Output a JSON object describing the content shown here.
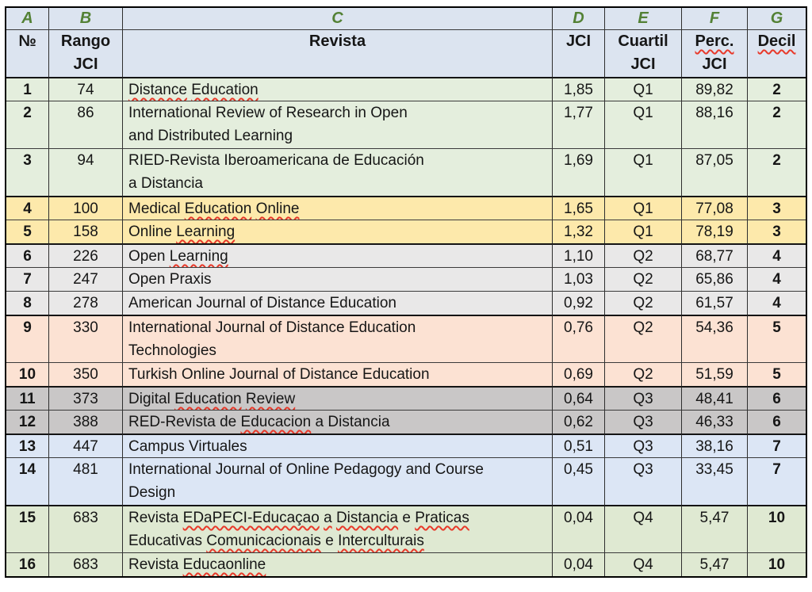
{
  "table": {
    "column_letters": [
      "A",
      "B",
      "C",
      "D",
      "E",
      "F",
      "G"
    ],
    "headers": [
      {
        "label": "№",
        "sq": []
      },
      {
        "label": "Rango\nJCI",
        "sq": []
      },
      {
        "label": "Revista",
        "sq": []
      },
      {
        "label": "JCI",
        "sq": []
      },
      {
        "label": "Cuartil\nJCI",
        "sq": []
      },
      {
        "label": "Perc.\nJCI",
        "sq": [
          "Perc."
        ]
      },
      {
        "label": "Decil",
        "sq": [
          "Decil"
        ]
      }
    ],
    "rows": [
      {
        "n": "1",
        "rango": "74",
        "revista": "Distance Education",
        "sq": [
          "Distance",
          "Education"
        ],
        "jci": "1,85",
        "cuartil": "Q1",
        "perc": "89,82",
        "decil": "2",
        "color": "green"
      },
      {
        "n": "2",
        "rango": "86",
        "revista": "International Review of Research in Open\nand Distributed Learning",
        "sq": [],
        "jci": "1,77",
        "cuartil": "Q1",
        "perc": "88,16",
        "decil": "2",
        "color": "green"
      },
      {
        "n": "3",
        "rango": "94",
        "revista": "RIED-Revista Iberoamericana de Educación\na Distancia",
        "sq": [],
        "jci": "1,69",
        "cuartil": "Q1",
        "perc": "87,05",
        "decil": "2",
        "color": "green"
      },
      {
        "n": "4",
        "rango": "100",
        "revista": "Medical Education Online",
        "sq": [
          "Education",
          "Online"
        ],
        "jci": "1,65",
        "cuartil": "Q1",
        "perc": "77,08",
        "decil": "3",
        "color": "yellow"
      },
      {
        "n": "5",
        "rango": "158",
        "revista": "Online Learning",
        "sq": [
          "Learning"
        ],
        "jci": "1,32",
        "cuartil": "Q1",
        "perc": "78,19",
        "decil": "3",
        "color": "yellow"
      },
      {
        "n": "6",
        "rango": "226",
        "revista": "Open Learning",
        "sq": [
          "Learning"
        ],
        "jci": "1,10",
        "cuartil": "Q2",
        "perc": "68,77",
        "decil": "4",
        "color": "gray"
      },
      {
        "n": "7",
        "rango": "247",
        "revista": "Open Praxis",
        "sq": [],
        "jci": "1,03",
        "cuartil": "Q2",
        "perc": "65,86",
        "decil": "4",
        "color": "gray"
      },
      {
        "n": "8",
        "rango": "278",
        "revista": "American Journal of Distance Education",
        "sq": [],
        "jci": "0,92",
        "cuartil": "Q2",
        "perc": "61,57",
        "decil": "4",
        "color": "gray"
      },
      {
        "n": "9",
        "rango": "330",
        "revista": "International Journal of Distance Education\nTechnologies",
        "sq": [],
        "jci": "0,76",
        "cuartil": "Q2",
        "perc": "54,36",
        "decil": "5",
        "color": "salmon"
      },
      {
        "n": "10",
        "rango": "350",
        "revista": "Turkish Online Journal of Distance Education",
        "sq": [],
        "jci": "0,69",
        "cuartil": "Q2",
        "perc": "51,59",
        "decil": "5",
        "color": "salmon"
      },
      {
        "n": "11",
        "rango": "373",
        "revista": "Digital Education Review",
        "sq": [
          "Education",
          "Review"
        ],
        "jci": "0,64",
        "cuartil": "Q3",
        "perc": "48,41",
        "decil": "6",
        "color": "darkgray"
      },
      {
        "n": "12",
        "rango": "388",
        "revista": "RED-Revista de Educacion a Distancia",
        "sq": [
          "Educacion"
        ],
        "jci": "0,62",
        "cuartil": "Q3",
        "perc": "46,33",
        "decil": "6",
        "color": "darkgray"
      },
      {
        "n": "13",
        "rango": "447",
        "revista": "Campus Virtuales",
        "sq": [],
        "jci": "0,51",
        "cuartil": "Q3",
        "perc": "38,16",
        "decil": "7",
        "color": "blue"
      },
      {
        "n": "14",
        "rango": "481",
        "revista": "International Journal of Online Pedagogy and Course\nDesign",
        "sq": [],
        "jci": "0,45",
        "cuartil": "Q3",
        "perc": "33,45",
        "decil": "7",
        "color": "blue"
      },
      {
        "n": "15",
        "rango": "683",
        "revista": "Revista EDaPECI-Educaçao a Distancia e Praticas\nEducativas Comunicacionais e Interculturais",
        "sq": [
          "EDaPECI-Educaçao",
          "a",
          "Distancia",
          "Praticas",
          "Comunicacionais",
          "Interculturais"
        ],
        "jci": "0,04",
        "cuartil": "Q4",
        "perc": "5,47",
        "decil": "10",
        "color": "green2"
      },
      {
        "n": "16",
        "rango": "683",
        "revista": "Revista Educaonline",
        "sq": [
          "Educaonline"
        ],
        "jci": "0,04",
        "cuartil": "Q4",
        "perc": "5,47",
        "decil": "10",
        "color": "green2"
      }
    ],
    "colors": {
      "header_bg": "#dce4f0",
      "letter_text": "#538135",
      "squiggle": "#e8392a",
      "green": "#e4eedd",
      "yellow": "#fde9ab",
      "gray": "#e9e8e8",
      "salmon": "#fce2d3",
      "darkgray": "#c9c7c7",
      "blue": "#dce6f5",
      "green2": "#dfe9d2"
    }
  }
}
